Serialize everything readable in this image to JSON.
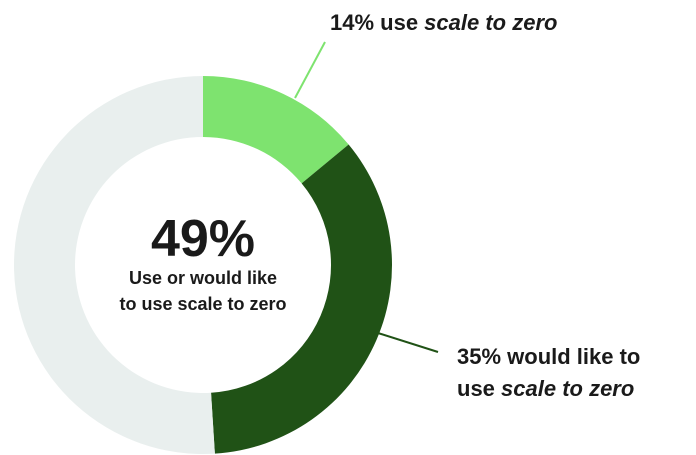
{
  "chart_data": {
    "type": "pie",
    "variant": "donut",
    "slices": [
      {
        "label": "14% use scale to zero",
        "value": 14,
        "color": "#7ee36f"
      },
      {
        "label": "35% would like to use scale to zero",
        "value": 35,
        "color": "#205216"
      },
      {
        "label": "",
        "value": 51,
        "color": "#e9efee"
      }
    ],
    "center": {
      "value": "49%",
      "caption_line1": "Use or would like",
      "caption_line2": "to use scale to zero"
    },
    "annotations": [
      {
        "pre": "14% use ",
        "em": "scale to zero",
        "post": ""
      },
      {
        "line1": "35% would like to",
        "pre2": "use ",
        "em2": "scale to zero"
      }
    ]
  }
}
